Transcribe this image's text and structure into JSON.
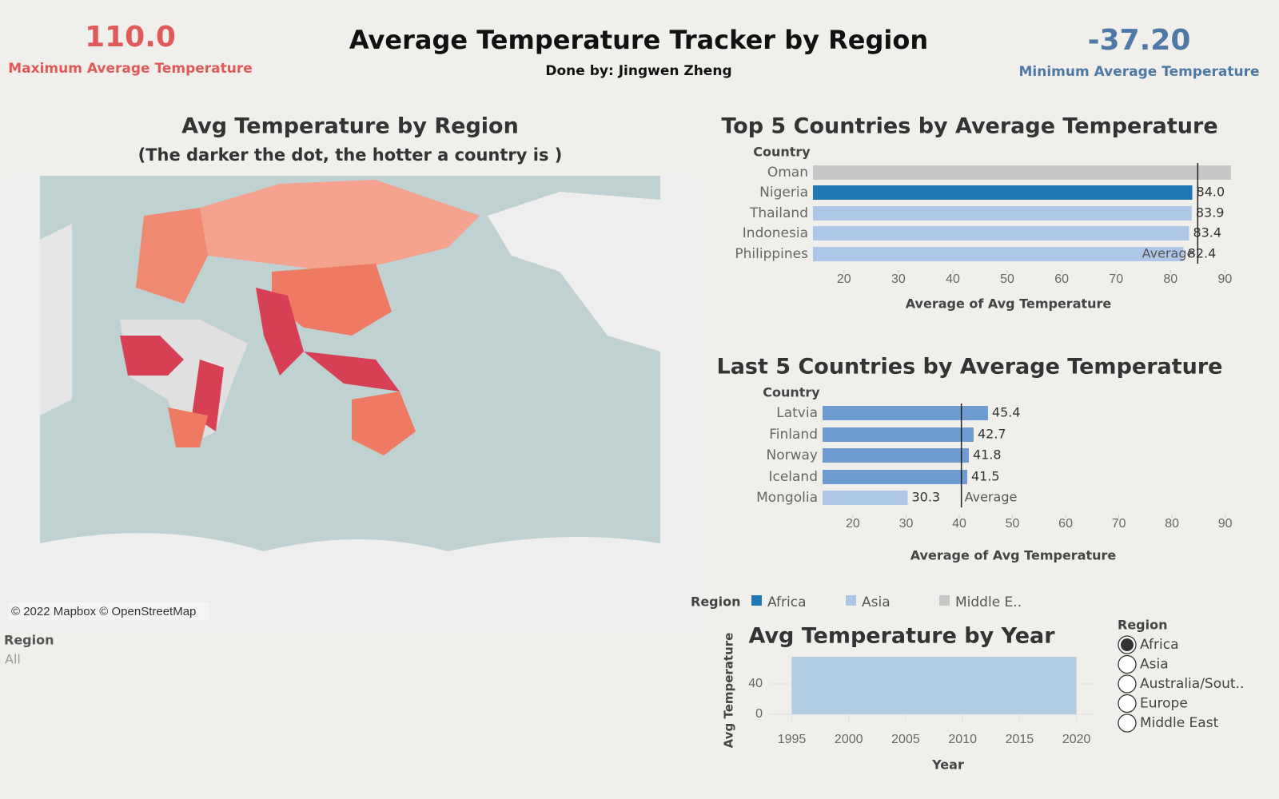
{
  "header": {
    "title": "Average Temperature Tracker by Region",
    "subtitle": "Done by: Jingwen Zheng"
  },
  "kpis": [
    {
      "value": "110.0",
      "label": "Maximum Average Temperature",
      "color": "#e05a5a"
    },
    {
      "value": "-37.20",
      "label": "Minimum Average Temperature",
      "color": "#4e79a7"
    }
  ],
  "map": {
    "title": "Avg Temperature by Region",
    "subtitle": "(The darker the dot, the hotter a country is )",
    "attribution": "© 2022 Mapbox © OpenStreetMap"
  },
  "map_filter": {
    "title": "Region",
    "value": "All"
  },
  "legend": {
    "title": "Region",
    "items": [
      {
        "name": "Africa",
        "color": "#1f77b4"
      },
      {
        "name": "Asia",
        "color": "#aec7e8"
      },
      {
        "name": "Middle E..",
        "color": "#c7c7c7"
      }
    ]
  },
  "year_filter": {
    "title": "Region",
    "options": [
      "Africa",
      "Asia",
      "Australia/Sout..",
      "Europe",
      "Middle East"
    ],
    "selected": "Africa"
  },
  "chart_data": [
    {
      "type": "hbar",
      "title": "Top 5 Countries by Average Temperature",
      "category_header": "Country",
      "categories": [
        "Oman",
        "Nigeria",
        "Thailand",
        "Indonesia",
        "Philippines"
      ],
      "values": [
        91.1,
        84.0,
        83.9,
        83.4,
        82.4
      ],
      "value_labels": [
        null,
        "84.0",
        "83.9",
        "83.4",
        "82.4"
      ],
      "colors": [
        "#c7c7c7",
        "#1f77b4",
        "#aec7e8",
        "#aec7e8",
        "#aec7e8"
      ],
      "xlim": [
        14.3,
        92
      ],
      "xticks": [
        20,
        30,
        40,
        50,
        60,
        70,
        80,
        90
      ],
      "x_label": "Average of Avg Temperature",
      "reference_line": {
        "label": "Average",
        "value": 85.0
      }
    },
    {
      "type": "hbar",
      "title": "Last 5 Countries by Average Temperature",
      "category_header": "Country",
      "categories": [
        "Latvia",
        "Finland",
        "Norway",
        "Iceland",
        "Mongolia"
      ],
      "values": [
        45.4,
        42.7,
        41.8,
        41.5,
        30.3
      ],
      "colors": [
        "#6f9bd0",
        "#6f9bd0",
        "#6f9bd0",
        "#6f9bd0",
        "#aec7e8"
      ],
      "xlim": [
        14.3,
        92
      ],
      "xticks": [
        20,
        30,
        40,
        50,
        60,
        70,
        80,
        90
      ],
      "x_label": "Average of Avg Temperature",
      "reference_line": {
        "label": "Average",
        "value": 40.4
      }
    },
    {
      "type": "area",
      "title": "Avg Temperature by Year",
      "color": "#b3cde3",
      "x": [
        1995,
        2020
      ],
      "values": [
        75.8,
        75.8
      ],
      "xlim": [
        1993,
        2021.5
      ],
      "xticks": [
        1995,
        2000,
        2005,
        2010,
        2015,
        2020
      ],
      "ylim": [
        -12.6,
        75.8
      ],
      "yticks": [
        0,
        40
      ],
      "x_label": "Year",
      "y_label": "Avg Temperature",
      "grid": true
    }
  ]
}
